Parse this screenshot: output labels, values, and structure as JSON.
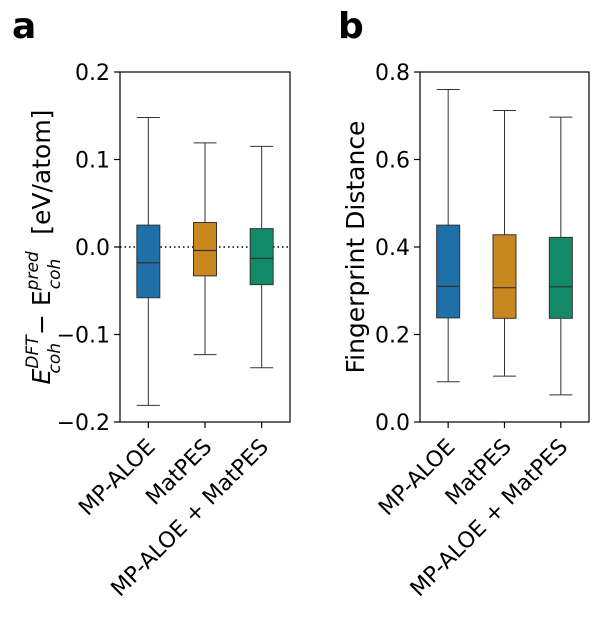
{
  "chart_data": [
    {
      "type": "box",
      "panel_label": "a",
      "ylabel_base": "E",
      "ylabel_sup1": "DFT",
      "ylabel_sub1": "coh",
      "ylabel_minus": " − E",
      "ylabel_sup2": "pred",
      "ylabel_sub2": "coh",
      "ylabel_unit": "[eV/atom]",
      "ylim": [
        -0.2,
        0.2
      ],
      "yticks": [
        -0.2,
        -0.1,
        0.0,
        0.1,
        0.2
      ],
      "ytick_labels": [
        "−0.2",
        "−0.1",
        "0.0",
        "0.1",
        "0.2"
      ],
      "reference_line": 0.0,
      "categories": [
        "MP-ALOE",
        "MatPES",
        "MP-ALOE + MatPES"
      ],
      "colors": [
        "#1f6fa8",
        "#c8881f",
        "#138a67"
      ],
      "boxes": [
        {
          "whisker_low": -0.181,
          "q1": -0.058,
          "median": -0.018,
          "q3": 0.025,
          "whisker_high": 0.148
        },
        {
          "whisker_low": -0.123,
          "q1": -0.033,
          "median": -0.004,
          "q3": 0.028,
          "whisker_high": 0.119
        },
        {
          "whisker_low": -0.138,
          "q1": -0.043,
          "median": -0.013,
          "q3": 0.021,
          "whisker_high": 0.115
        }
      ]
    },
    {
      "type": "box",
      "panel_label": "b",
      "ylabel": "Fingerprint Distance",
      "ylim": [
        0.0,
        0.8
      ],
      "yticks": [
        0.0,
        0.2,
        0.4,
        0.6,
        0.8
      ],
      "ytick_labels": [
        "0.0",
        "0.2",
        "0.4",
        "0.6",
        "0.8"
      ],
      "categories": [
        "MP-ALOE",
        "MatPES",
        "MP-ALOE + MatPES"
      ],
      "colors": [
        "#1f6fa8",
        "#c8881f",
        "#138a67"
      ],
      "boxes": [
        {
          "whisker_low": 0.092,
          "q1": 0.238,
          "median": 0.31,
          "q3": 0.45,
          "whisker_high": 0.76
        },
        {
          "whisker_low": 0.105,
          "q1": 0.237,
          "median": 0.307,
          "q3": 0.428,
          "whisker_high": 0.712
        },
        {
          "whisker_low": 0.062,
          "q1": 0.237,
          "median": 0.309,
          "q3": 0.422,
          "whisker_high": 0.697
        }
      ]
    }
  ]
}
